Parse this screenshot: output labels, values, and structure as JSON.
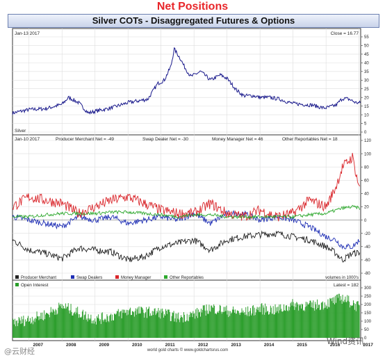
{
  "header": {
    "title": "Net Positions",
    "subtitle": "Silver COTs - Disaggregated Futures & Options"
  },
  "footer": {
    "credit": "world gold charts © www.goldchartsrus.com",
    "watermark_left": "@云财经",
    "watermark_right": "Wind资讯"
  },
  "colors": {
    "price": "#1a1a8c",
    "producer_merchant": "#222222",
    "swap_dealers": "#1f2fb5",
    "money_manager": "#d9252a",
    "other_reportables": "#2ea82e",
    "open_interest": "#2a9d2a",
    "frame": "#333333",
    "grid": "#dddddd"
  },
  "chart_data": [
    {
      "type": "line",
      "panel": "price",
      "title": "Jan-13 2017",
      "right_label": "Close = 16.77",
      "series_label": "Silver",
      "ylim": [
        0,
        55
      ],
      "yticks": [
        0,
        5,
        10,
        15,
        20,
        25,
        30,
        35,
        40,
        45,
        50,
        55
      ],
      "x": [
        2006.5,
        2007.0,
        2007.5,
        2008.0,
        2008.2,
        2008.5,
        2008.8,
        2009.0,
        2009.5,
        2010.0,
        2010.3,
        2010.6,
        2010.9,
        2011.1,
        2011.3,
        2011.4,
        2011.6,
        2011.7,
        2011.9,
        2012.0,
        2012.2,
        2012.5,
        2012.8,
        2013.0,
        2013.3,
        2013.5,
        2013.8,
        2014.0,
        2014.3,
        2014.6,
        2014.9,
        2015.0,
        2015.3,
        2015.6,
        2015.9,
        2016.0,
        2016.3,
        2016.5,
        2016.7,
        2016.9,
        2017.04
      ],
      "series": [
        {
          "name": "Silver",
          "values": [
            11,
            13,
            13.5,
            16,
            20,
            17,
            11,
            12,
            14,
            17,
            18,
            19,
            28,
            30,
            38,
            48,
            42,
            38,
            32,
            33,
            35,
            30,
            33,
            31,
            24,
            21,
            21,
            20,
            20,
            19,
            17,
            16.5,
            16,
            15.5,
            14,
            14,
            15.5,
            19.5,
            19,
            17,
            16.77
          ]
        }
      ]
    },
    {
      "type": "line",
      "panel": "net-positions",
      "title": "Jan-10 2017",
      "ylabel": "volumes in 1000's",
      "ylim": [
        -80,
        120
      ],
      "yticks": [
        -80,
        -60,
        -40,
        -20,
        0,
        20,
        40,
        60,
        80,
        100,
        120
      ],
      "header_labels": [
        "Producer Merchant Net = -49",
        "Swap Dealer Net = -30",
        "Money Manager Net = 46",
        "Other Reportables Net = 18"
      ],
      "x": [
        2006.5,
        2007.0,
        2007.5,
        2008.0,
        2008.5,
        2009.0,
        2009.5,
        2010.0,
        2010.5,
        2011.0,
        2011.5,
        2012.0,
        2012.5,
        2013.0,
        2013.5,
        2014.0,
        2014.5,
        2015.0,
        2015.5,
        2016.0,
        2016.3,
        2016.5,
        2016.8,
        2017.02
      ],
      "series": [
        {
          "name": "Producer Merchant",
          "values": [
            -30,
            -45,
            -50,
            -58,
            -42,
            -45,
            -48,
            -60,
            -55,
            -40,
            -35,
            -30,
            -45,
            -30,
            -25,
            -22,
            -20,
            -25,
            -30,
            -40,
            -50,
            -60,
            -50,
            -49
          ]
        },
        {
          "name": "Swap Dealers",
          "values": [
            5,
            0,
            -5,
            -10,
            5,
            0,
            5,
            -5,
            0,
            5,
            0,
            10,
            -5,
            10,
            10,
            0,
            5,
            0,
            -10,
            -25,
            -30,
            -40,
            -40,
            -30
          ]
        },
        {
          "name": "Money Manager",
          "values": [
            20,
            35,
            30,
            25,
            10,
            20,
            30,
            35,
            25,
            15,
            10,
            10,
            25,
            10,
            5,
            15,
            5,
            10,
            30,
            20,
            50,
            80,
            95,
            46
          ]
        },
        {
          "name": "Other Reportables",
          "values": [
            5,
            5,
            8,
            10,
            10,
            10,
            12,
            12,
            10,
            8,
            5,
            8,
            8,
            5,
            5,
            5,
            5,
            5,
            8,
            10,
            15,
            18,
            20,
            18
          ]
        }
      ]
    },
    {
      "type": "bar",
      "panel": "open-interest",
      "title": "Open Interest",
      "right_label": "Latest = 182",
      "ylim": [
        0,
        300
      ],
      "yticks": [
        0,
        50,
        100,
        150,
        200,
        250,
        300
      ],
      "x_ticks": [
        "2007",
        "2008",
        "2009",
        "2010",
        "2011",
        "2012",
        "2013",
        "2014",
        "2015",
        "2016",
        "2017"
      ],
      "x_tick_values": [
        2007,
        2008,
        2009,
        2010,
        2011,
        2012,
        2013,
        2014,
        2015,
        2016,
        2017
      ],
      "xlim": [
        2006.5,
        2017.05
      ],
      "x": [
        2006.5,
        2007.0,
        2007.5,
        2008.0,
        2008.5,
        2009.0,
        2009.5,
        2010.0,
        2010.5,
        2011.0,
        2011.5,
        2012.0,
        2012.5,
        2013.0,
        2013.5,
        2014.0,
        2014.5,
        2015.0,
        2015.5,
        2016.0,
        2016.5,
        2017.0
      ],
      "series": [
        {
          "name": "Open Interest",
          "values": [
            90,
            110,
            140,
            190,
            150,
            110,
            130,
            160,
            155,
            150,
            120,
            140,
            180,
            160,
            150,
            175,
            165,
            200,
            190,
            205,
            240,
            182
          ]
        }
      ]
    }
  ]
}
